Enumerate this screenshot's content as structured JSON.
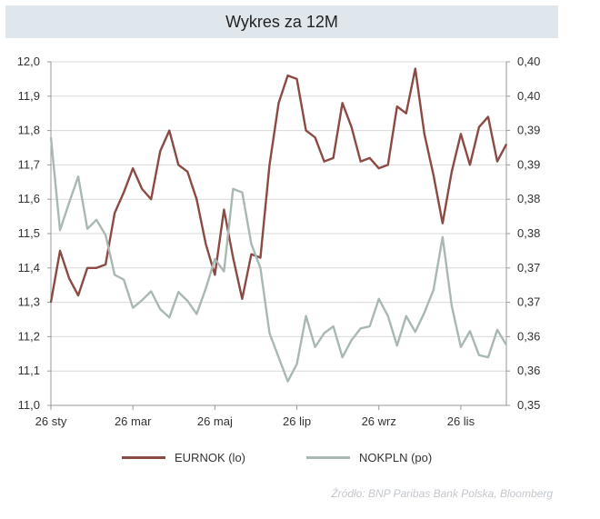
{
  "chart_data": {
    "type": "line",
    "title": "Wykres za 12M",
    "x_tick_labels": [
      "26 sty",
      "26 mar",
      "26 maj",
      "26 lip",
      "26 wrz",
      "26 lis"
    ],
    "x_tick_index": [
      0,
      9,
      18,
      27,
      36,
      45
    ],
    "y_left_ticks": [
      "11,0",
      "11,1",
      "11,2",
      "11,3",
      "11,4",
      "11,5",
      "11,6",
      "11,7",
      "11,8",
      "11,9",
      "12,0"
    ],
    "y_left_range": [
      11.0,
      12.0
    ],
    "y_right_ticks": [
      "0,35",
      "0,36",
      "0,36",
      "0,37",
      "0,37",
      "0,38",
      "0,38",
      "0,39",
      "0,39",
      "0,40",
      "0,40"
    ],
    "y_right_range": [
      0.35,
      0.4
    ],
    "series": [
      {
        "name": "EURNOK (lo)",
        "axis": "left",
        "color": "#8b4a44",
        "values": [
          11.3,
          11.45,
          11.37,
          11.32,
          11.4,
          11.4,
          11.41,
          11.56,
          11.62,
          11.69,
          11.63,
          11.6,
          11.74,
          11.8,
          11.7,
          11.68,
          11.6,
          11.47,
          11.38,
          11.57,
          11.43,
          11.31,
          11.44,
          11.43,
          11.7,
          11.88,
          11.96,
          11.95,
          11.8,
          11.78,
          11.71,
          11.72,
          11.88,
          11.81,
          11.71,
          11.72,
          11.69,
          11.7,
          11.87,
          11.85,
          11.98,
          11.79,
          11.67,
          11.53,
          11.68,
          11.79,
          11.7,
          11.81,
          11.84,
          11.71,
          11.76
        ]
      },
      {
        "name": "NOKPLN (po)",
        "axis": "right",
        "color": "#a9b8b2",
        "values": [
          0.389,
          0.3755,
          0.3795,
          0.3833,
          0.3757,
          0.377,
          0.3748,
          0.369,
          0.3683,
          0.3642,
          0.3653,
          0.3666,
          0.364,
          0.3628,
          0.3665,
          0.3652,
          0.3633,
          0.367,
          0.3713,
          0.3695,
          0.3815,
          0.381,
          0.3735,
          0.37,
          0.3605,
          0.357,
          0.3535,
          0.356,
          0.363,
          0.3585,
          0.3605,
          0.3615,
          0.357,
          0.3595,
          0.3612,
          0.3615,
          0.3655,
          0.363,
          0.3587,
          0.363,
          0.3607,
          0.3635,
          0.3668,
          0.3745,
          0.3645,
          0.3585,
          0.3608,
          0.3573,
          0.357,
          0.361,
          0.3588
        ]
      }
    ],
    "legend_position": "bottom-center",
    "source": "Źródło:  BNP Paribas Bank Polska, Bloomberg"
  }
}
